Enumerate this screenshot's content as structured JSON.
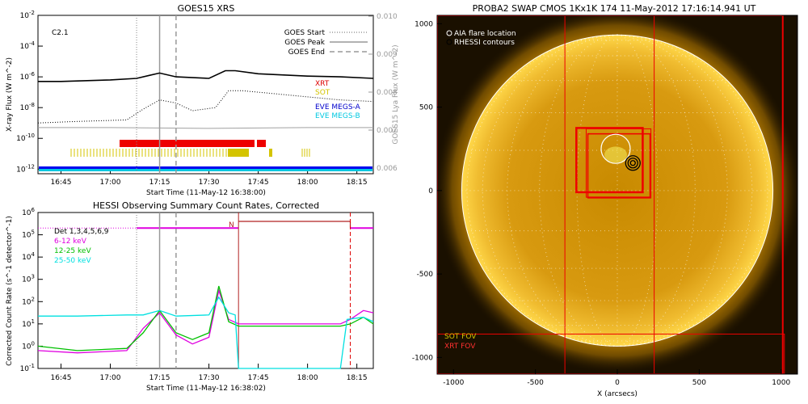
{
  "chart_data": [
    {
      "type": "line",
      "title": "GOES15 XRS",
      "xlabel": "Start Time (11-May-12 16:38:00)",
      "ylabel": "X-ray Flux (W m^-2)",
      "y2label": "GOES15 Lya Flux (W m^-2)",
      "x_ticks": [
        "16:45",
        "17:00",
        "17:15",
        "17:30",
        "17:45",
        "18:00",
        "18:15"
      ],
      "y_ticks": [
        "10^-12",
        "10^-10",
        "10^-8",
        "10^-6",
        "10^-4",
        "10^-2"
      ],
      "y2_ticks": [
        "0.006",
        "0.007",
        "0.008",
        "0.009",
        "0.010"
      ],
      "ylim_log10": [
        -12.3,
        -2
      ],
      "flare_class": "C2.1",
      "legend": [
        "GOES Start",
        "GOES Peak",
        "GOES End"
      ],
      "instrument_labels": [
        {
          "text": "XRT",
          "color": "#dd0000"
        },
        {
          "text": "SOT",
          "color": "#d4c400"
        },
        {
          "text": "EVE MEGS-A",
          "color": "#0000cc"
        },
        {
          "text": "EVE MEGS-B",
          "color": "#00c8e0"
        }
      ],
      "event_lines": {
        "start": "17:08",
        "peak": "17:15",
        "end": "17:20"
      },
      "series": [
        {
          "name": "",
          "color": "#000000",
          "x": [
            "16:38",
            "16:45",
            "17:00",
            "17:08",
            "17:12",
            "17:15",
            "17:20",
            "17:30",
            "17:35",
            "17:38",
            "17:45",
            "18:00",
            "18:10",
            "18:20"
          ],
          "log10_y": [
            -6.3,
            -6.3,
            -6.2,
            -6.1,
            -5.9,
            -5.75,
            -6.0,
            -6.1,
            -5.6,
            -5.6,
            -5.8,
            -5.95,
            -6.0,
            -6.1
          ]
        },
        {
          "name": "",
          "color": "#000000",
          "x": [
            "16:38",
            "16:50",
            "17:05",
            "17:10",
            "17:15",
            "17:20",
            "17:25",
            "17:32",
            "17:36",
            "17:40",
            "17:50",
            "18:00",
            "18:10",
            "18:20"
          ],
          "log10_y": [
            -9.0,
            -8.9,
            -8.8,
            -8.1,
            -7.5,
            -7.7,
            -8.2,
            -8.0,
            -6.9,
            -6.9,
            -7.1,
            -7.3,
            -7.5,
            -7.6
          ]
        },
        {
          "name": "",
          "color": "#a0a0a0",
          "x": [
            "16:38",
            "17:00",
            "17:30",
            "18:00",
            "18:20"
          ],
          "log10_y": [
            -9.3,
            -9.3,
            -9.35,
            -9.3,
            -9.3
          ]
        }
      ]
    },
    {
      "type": "line",
      "title": "HESSI Observing Summary Count Rates, Corrected",
      "xlabel": "Start Time (11-May-12 16:38:02)",
      "ylabel": "Corrected Count Rate (s^-1 detector^-1)",
      "x_ticks": [
        "16:45",
        "17:00",
        "17:15",
        "17:30",
        "17:45",
        "18:00",
        "18:15"
      ],
      "y_ticks": [
        "10^-1",
        "10^0",
        "10^1",
        "10^2",
        "10^3",
        "10^4",
        "10^5",
        "10^6"
      ],
      "ylim_log10": [
        -1,
        6
      ],
      "legend": [
        {
          "text": "Det 1,3,4,5,6,9",
          "color": "#000000"
        },
        {
          "text": "6-12 keV",
          "color": "#e000e0"
        },
        {
          "text": "12-25 keV",
          "color": "#00c000"
        },
        {
          "text": "25-50 keV",
          "color": "#00e0e0"
        }
      ],
      "night_marker": "N",
      "event_lines": {
        "start": "17:08",
        "peak": "17:15",
        "end": "17:20",
        "night_start": "17:39",
        "night_end": "18:13"
      },
      "series": [
        {
          "name": "6-12 keV",
          "color": "#e000e0",
          "x": [
            "16:38",
            "16:50",
            "17:05",
            "17:10",
            "17:15",
            "17:20",
            "17:25",
            "17:30",
            "17:33",
            "17:36",
            "17:39",
            "18:10",
            "18:13",
            "18:17",
            "18:20"
          ],
          "log10_y": [
            -0.2,
            -0.3,
            -0.2,
            0.8,
            1.5,
            0.5,
            0.1,
            0.4,
            2.5,
            1.2,
            1.0,
            1.0,
            1.2,
            1.6,
            1.5
          ]
        },
        {
          "name": "12-25 keV",
          "color": "#00c000",
          "x": [
            "16:38",
            "16:50",
            "17:05",
            "17:10",
            "17:15",
            "17:20",
            "17:25",
            "17:30",
            "17:33",
            "17:36",
            "17:39",
            "18:10",
            "18:13",
            "18:17",
            "18:20"
          ],
          "log10_y": [
            0.0,
            -0.2,
            -0.1,
            0.6,
            1.6,
            0.6,
            0.3,
            0.6,
            2.7,
            1.1,
            0.9,
            0.9,
            1.0,
            1.3,
            1.0
          ]
        },
        {
          "name": "25-50 keV",
          "color": "#00e0e0",
          "x": [
            "16:38",
            "16:50",
            "17:05",
            "17:10",
            "17:15",
            "17:20",
            "17:30",
            "17:33",
            "17:36",
            "17:38",
            "17:39",
            "18:10",
            "18:12",
            "18:17",
            "18:20"
          ],
          "log10_y": [
            1.35,
            1.35,
            1.4,
            1.4,
            1.6,
            1.35,
            1.4,
            2.2,
            1.5,
            1.4,
            -1.0,
            -1.0,
            1.2,
            1.3,
            1.1
          ]
        }
      ]
    },
    {
      "type": "heatmap",
      "title": "PROBA2 SWAP CMOS 1Kx1K 174 11-May-2012 17:16:14.941 UT",
      "xlabel": "X (arcsecs)",
      "ylabel": "",
      "x_ticks": [
        "-1000",
        "-500",
        "0",
        "500",
        "1000"
      ],
      "y_ticks": [
        "-1000",
        "-500",
        "0",
        "500",
        "1000"
      ],
      "xlim": [
        -1100,
        1100
      ],
      "ylim": [
        -1100,
        1050
      ],
      "legend": [
        {
          "text": "AIA flare location",
          "symbol": "circle"
        },
        {
          "text": "RHESSI contours",
          "symbol": "circle"
        }
      ],
      "fov_labels": [
        {
          "text": "SOT FOV",
          "color": "#d4c400"
        },
        {
          "text": "XRT FOV",
          "color": "#dd0000"
        }
      ],
      "solar_radius_arcsec": 950,
      "flare_location": [
        95,
        165
      ]
    }
  ]
}
